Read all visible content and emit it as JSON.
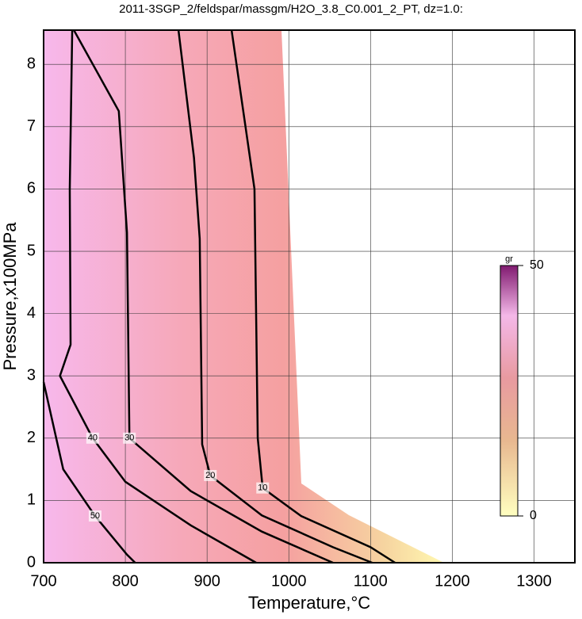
{
  "chart_data": {
    "type": "contour",
    "title": "2011-3SGP_2/feldspar/massgm/H2O_3.8_C0.001_2_PT, dz=1.0:",
    "x_label": "Temperature,°C",
    "y_label": "Pressure,x100MPa",
    "xlim": [
      700,
      1350
    ],
    "xticks": [
      700,
      800,
      900,
      1000,
      1100,
      1200,
      1300
    ],
    "ylim": [
      0,
      8.55
    ],
    "yticks": [
      0,
      1,
      2,
      3,
      4,
      5,
      6,
      7,
      8
    ],
    "grid": true,
    "series": [
      {
        "name": "10",
        "color": "#000000",
        "x": [
          930,
          958,
          960,
          962,
          968,
          1015,
          1100,
          1130
        ],
        "y": [
          8.55,
          6,
          4,
          2,
          1.2,
          0.75,
          0.25,
          0
        ]
      },
      {
        "name": "20",
        "color": "#000000",
        "x": [
          865,
          884,
          891,
          894,
          904,
          967,
          1054,
          1102
        ],
        "y": [
          8.55,
          6.5,
          5.2,
          1.9,
          1.4,
          0.76,
          0.25,
          0
        ]
      },
      {
        "name": "30",
        "color": "#000000",
        "x": [
          737,
          792,
          802,
          805,
          880,
          967,
          1054
        ],
        "y": [
          8.55,
          7.25,
          5.3,
          2,
          1.15,
          0.5,
          0
        ]
      },
      {
        "name": "40",
        "color": "#000000",
        "x": [
          735,
          732,
          733,
          720,
          760,
          800,
          880,
          960
        ],
        "y": [
          8.55,
          6,
          3.5,
          3.0,
          2.0,
          1.3,
          0.6,
          0
        ]
      },
      {
        "name": "50",
        "color": "#000000",
        "x": [
          700,
          724,
          763,
          802,
          812
        ],
        "y": [
          2.9,
          1.5,
          0.75,
          0.13,
          0
        ]
      }
    ],
    "colorbar": {
      "label": "gr",
      "lim": [
        0,
        50
      ],
      "ticks": [
        0,
        50
      ]
    }
  }
}
